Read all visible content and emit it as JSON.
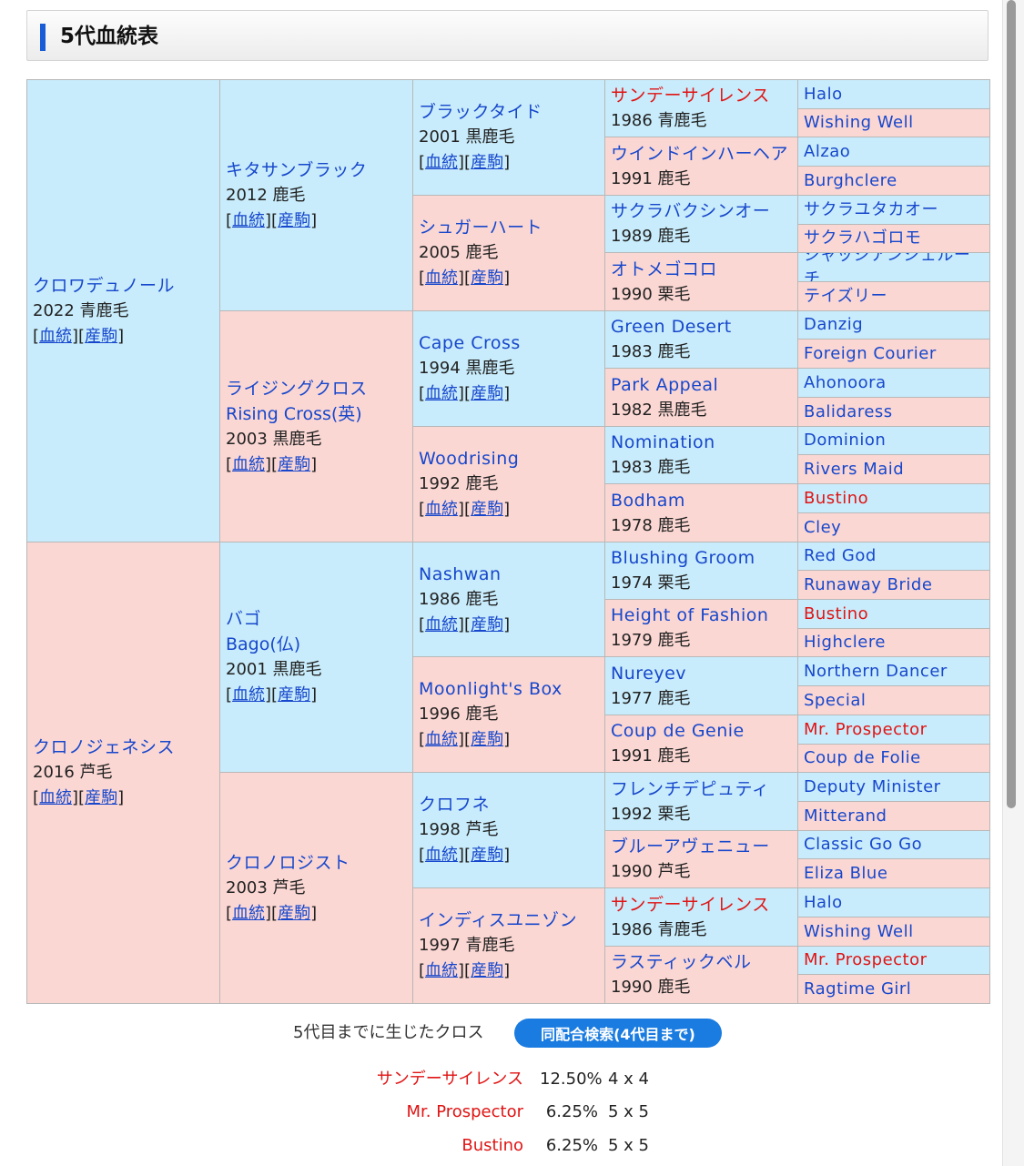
{
  "header": {
    "title": "5代血統表"
  },
  "links": {
    "pedigree": "血統",
    "progeny": "産駒"
  },
  "gen1": [
    {
      "name": "クロワデュノール",
      "info": "2022 青鹿毛",
      "sex": "sire"
    },
    {
      "name": "クロノジェネシス",
      "info": "2016 芦毛",
      "sex": "dam"
    }
  ],
  "gen2": [
    {
      "name": "キタサンブラック",
      "info": "2012 鹿毛",
      "sex": "sire"
    },
    {
      "name": "ライジングクロス",
      "name2": "Rising Cross(英)",
      "info": "2003 黒鹿毛",
      "sex": "dam"
    },
    {
      "name": "バゴ",
      "name2": "Bago(仏)",
      "info": "2001 黒鹿毛",
      "sex": "sire"
    },
    {
      "name": "クロノロジスト",
      "info": "2003 芦毛",
      "sex": "dam"
    }
  ],
  "gen3": [
    {
      "name": "ブラックタイド",
      "info": "2001 黒鹿毛",
      "sex": "sire"
    },
    {
      "name": "シュガーハート",
      "info": "2005 鹿毛",
      "sex": "dam"
    },
    {
      "name": "Cape Cross",
      "info": "1994 黒鹿毛",
      "sex": "sire"
    },
    {
      "name": "Woodrising",
      "info": "1992 鹿毛",
      "sex": "dam"
    },
    {
      "name": "Nashwan",
      "info": "1986 鹿毛",
      "sex": "sire"
    },
    {
      "name": "Moonlight's Box",
      "info": "1996 鹿毛",
      "sex": "dam"
    },
    {
      "name": "クロフネ",
      "info": "1998 芦毛",
      "sex": "sire"
    },
    {
      "name": "インディスユニゾン",
      "info": "1997 青鹿毛",
      "sex": "dam"
    }
  ],
  "gen4": [
    {
      "name": "サンデーサイレンス",
      "info": "1986 青鹿毛",
      "sex": "sire",
      "cross": true
    },
    {
      "name": "ウインドインハーヘア",
      "info": "1991 鹿毛",
      "sex": "dam"
    },
    {
      "name": "サクラバクシンオー",
      "info": "1989 鹿毛",
      "sex": "sire"
    },
    {
      "name": "オトメゴコロ",
      "info": "1990 栗毛",
      "sex": "dam"
    },
    {
      "name": "Green Desert",
      "info": "1983 鹿毛",
      "sex": "sire"
    },
    {
      "name": "Park Appeal",
      "info": "1982 黒鹿毛",
      "sex": "dam"
    },
    {
      "name": "Nomination",
      "info": "1983 鹿毛",
      "sex": "sire"
    },
    {
      "name": "Bodham",
      "info": "1978 鹿毛",
      "sex": "dam"
    },
    {
      "name": "Blushing Groom",
      "info": "1974 栗毛",
      "sex": "sire"
    },
    {
      "name": "Height of Fashion",
      "info": "1979 鹿毛",
      "sex": "dam"
    },
    {
      "name": "Nureyev",
      "info": "1977 鹿毛",
      "sex": "sire"
    },
    {
      "name": "Coup de Genie",
      "info": "1991 鹿毛",
      "sex": "dam"
    },
    {
      "name": "フレンチデピュティ",
      "info": "1992 栗毛",
      "sex": "sire"
    },
    {
      "name": "ブルーアヴェニュー",
      "info": "1990 芦毛",
      "sex": "dam"
    },
    {
      "name": "サンデーサイレンス",
      "info": "1986 青鹿毛",
      "sex": "sire",
      "cross": true
    },
    {
      "name": "ラスティックベル",
      "info": "1990 鹿毛",
      "sex": "dam"
    }
  ],
  "gen5": [
    {
      "name": "Halo",
      "sex": "sire"
    },
    {
      "name": "Wishing Well",
      "sex": "dam"
    },
    {
      "name": "Alzao",
      "sex": "sire"
    },
    {
      "name": "Burghclere",
      "sex": "dam"
    },
    {
      "name": "サクラユタカオー",
      "sex": "sire"
    },
    {
      "name": "サクラハゴロモ",
      "sex": "dam"
    },
    {
      "name": "ジャッジアンジェルーチ",
      "sex": "sire"
    },
    {
      "name": "テイズリー",
      "sex": "dam"
    },
    {
      "name": "Danzig",
      "sex": "sire"
    },
    {
      "name": "Foreign Courier",
      "sex": "dam"
    },
    {
      "name": "Ahonoora",
      "sex": "sire"
    },
    {
      "name": "Balidaress",
      "sex": "dam"
    },
    {
      "name": "Dominion",
      "sex": "sire"
    },
    {
      "name": "Rivers Maid",
      "sex": "dam"
    },
    {
      "name": "Bustino",
      "sex": "sire",
      "cross": true
    },
    {
      "name": "Cley",
      "sex": "dam"
    },
    {
      "name": "Red God",
      "sex": "sire"
    },
    {
      "name": "Runaway Bride",
      "sex": "dam"
    },
    {
      "name": "Bustino",
      "sex": "sire",
      "cross": true
    },
    {
      "name": "Highclere",
      "sex": "dam"
    },
    {
      "name": "Northern Dancer",
      "sex": "sire"
    },
    {
      "name": "Special",
      "sex": "dam"
    },
    {
      "name": "Mr. Prospector",
      "sex": "sire",
      "cross": true
    },
    {
      "name": "Coup de Folie",
      "sex": "dam"
    },
    {
      "name": "Deputy Minister",
      "sex": "sire"
    },
    {
      "name": "Mitterand",
      "sex": "dam"
    },
    {
      "name": "Classic Go Go",
      "sex": "sire"
    },
    {
      "name": "Eliza Blue",
      "sex": "dam"
    },
    {
      "name": "Halo",
      "sex": "sire"
    },
    {
      "name": "Wishing Well",
      "sex": "dam"
    },
    {
      "name": "Mr. Prospector",
      "sex": "sire",
      "cross": true
    },
    {
      "name": "Ragtime Girl",
      "sex": "dam"
    }
  ],
  "crosses": {
    "title": "5代目までに生じたクロス",
    "button_label": "同配合検索(4代目まで)",
    "items": [
      {
        "name": "サンデーサイレンス",
        "percent": "12.50%",
        "gen": "4 x 4"
      },
      {
        "name": "Mr. Prospector",
        "percent": "6.25%",
        "gen": "5 x 5"
      },
      {
        "name": "Bustino",
        "percent": "6.25%",
        "gen": "5 x 5"
      }
    ]
  },
  "colors": {
    "sire_bg": "#c8ecfb",
    "dam_bg": "#fbd7d3",
    "link": "#1747cc",
    "cross": "#e01414",
    "button": "#1a7be0"
  }
}
